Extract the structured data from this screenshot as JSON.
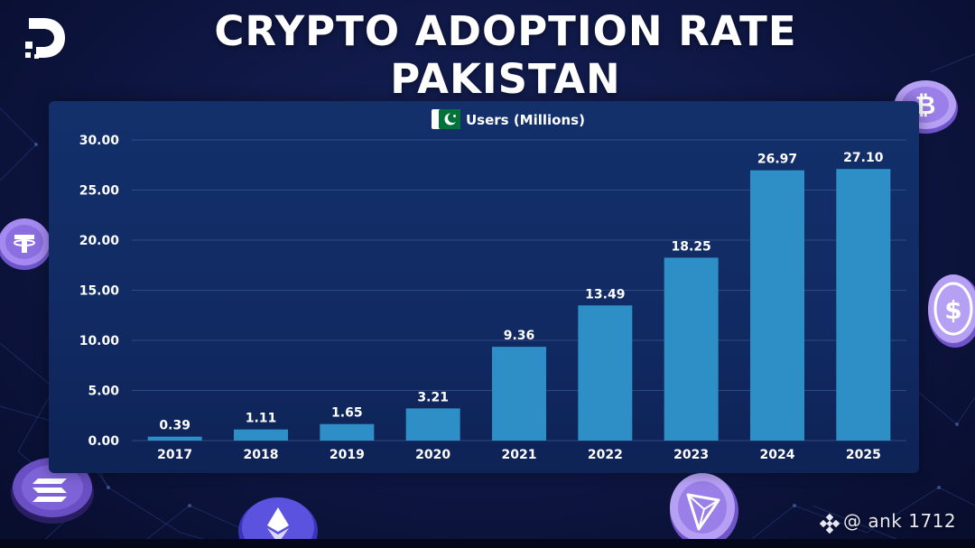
{
  "title": "CRYPTO ADOPTION RATE PAKISTAN",
  "watermark": "@ ank 1712",
  "colors": {
    "bar": "#2e8fc6",
    "panel": "#123067",
    "grid": "#3b5a92",
    "text": "#ffffff"
  },
  "icons": {
    "brand_logo": "brand-logo-icon",
    "flag": "pakistan-flag-icon",
    "coins": [
      "tether-coin-icon",
      "bitcoin-coin-icon",
      "usd-coin-icon",
      "solana-coin-icon",
      "ethereum-coin-icon",
      "tron-coin-icon"
    ],
    "watermark": "binance-square-icon"
  },
  "chart_data": {
    "type": "bar",
    "title": "CRYPTO ADOPTION RATE PAKISTAN",
    "legend": "Users (Millions)",
    "legend_position": "top-center",
    "categories": [
      "2017",
      "2018",
      "2019",
      "2020",
      "2021",
      "2022",
      "2023",
      "2024",
      "2025"
    ],
    "values": [
      0.39,
      1.11,
      1.65,
      3.21,
      9.36,
      13.49,
      18.25,
      26.97,
      27.1
    ],
    "value_labels": [
      "0.39",
      "1.11",
      "1.65",
      "3.21",
      "9.36",
      "13.49",
      "18.25",
      "26.97",
      "27.10"
    ],
    "yticks": [
      "0.00",
      "5.00",
      "10.00",
      "15.00",
      "20.00",
      "25.00",
      "30.00"
    ],
    "ylim": [
      0,
      30
    ],
    "grid": true,
    "xlabel": "",
    "ylabel": ""
  }
}
